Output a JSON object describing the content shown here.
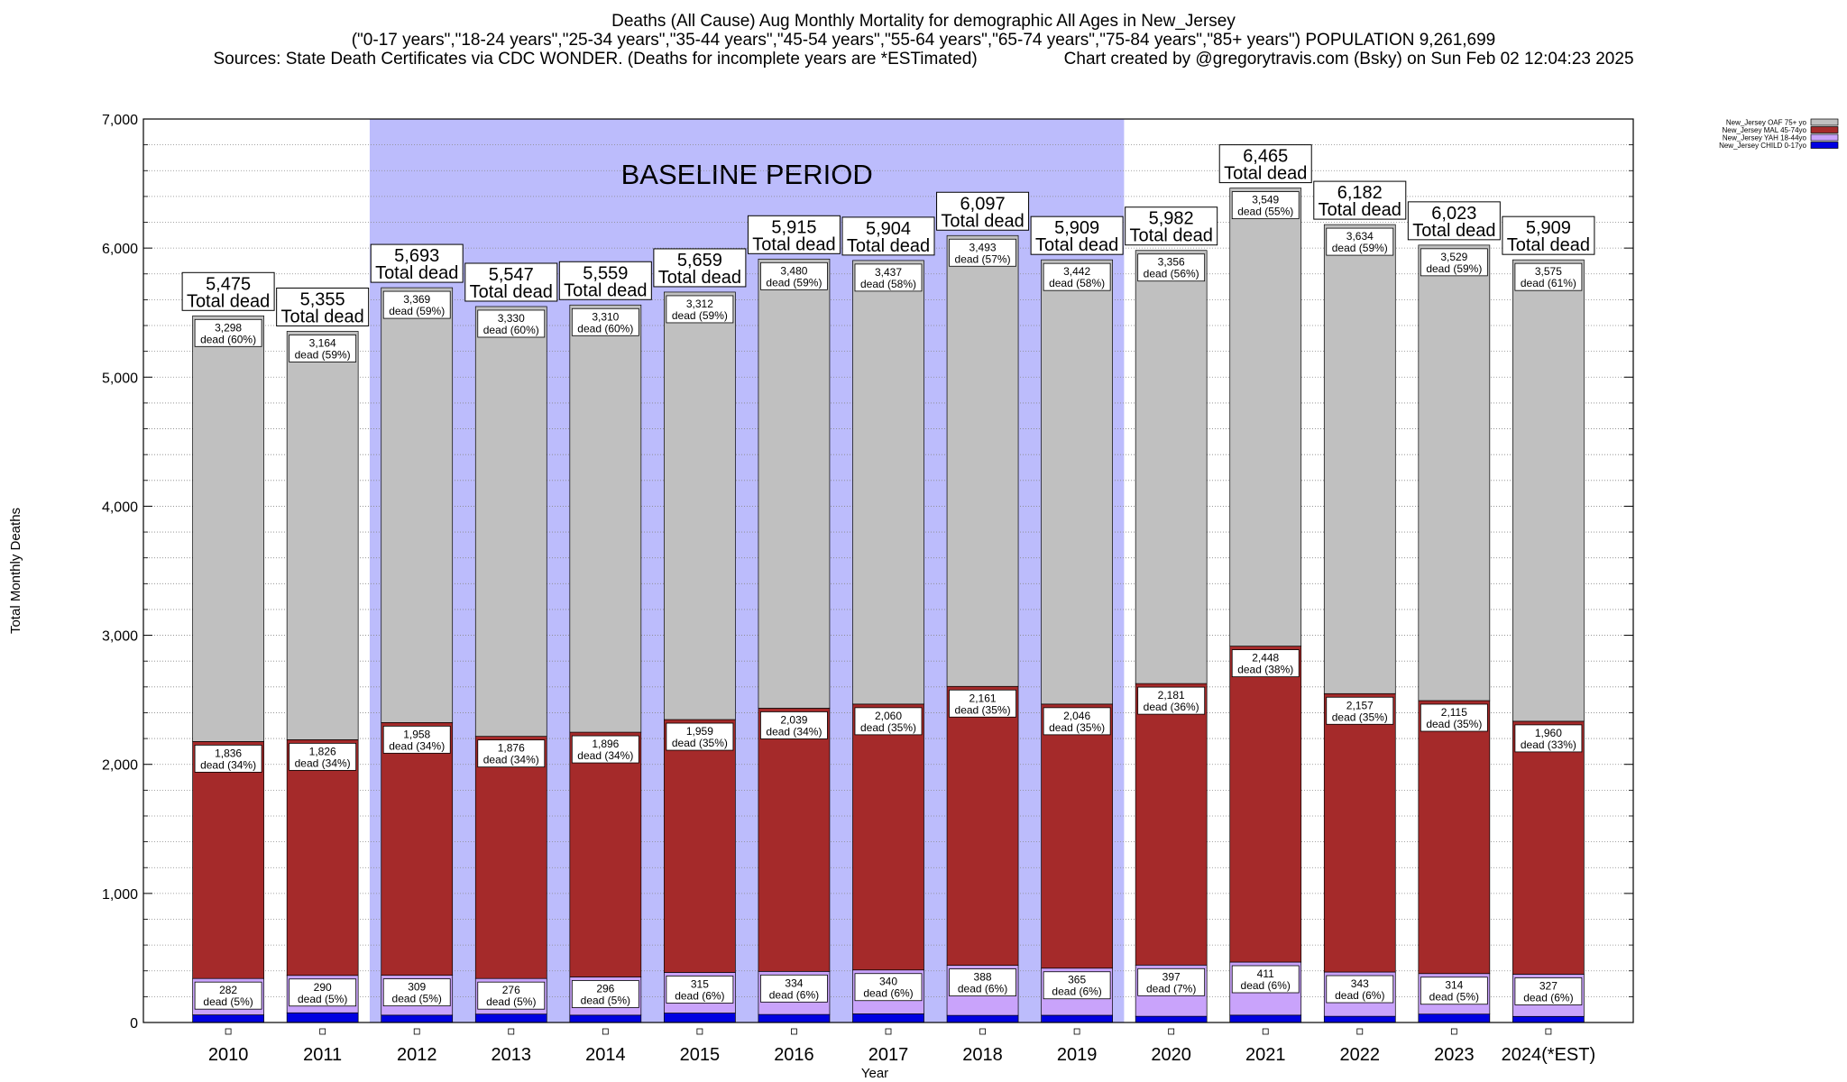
{
  "header": {
    "title": "Deaths (All Cause) Aug Monthly Mortality for demographic All Ages in New_Jersey",
    "subtitle": "(\"0-17 years\",\"18-24 years\",\"25-34 years\",\"35-44 years\",\"45-54 years\",\"55-64 years\",\"65-74 years\",\"75-84 years\",\"85+ years\") POPULATION 9,261,699",
    "sources": "Sources: State Death Certificates via CDC WONDER. (Deaths for incomplete years are *ESTimated)",
    "credit": "Chart created by @gregorytravis.com (Bsky) on Sun Feb 02 12:04:23 2025"
  },
  "chart_data": {
    "type": "bar",
    "stacked": true,
    "xlabel": "Year",
    "ylabel": "Total Monthly Deaths",
    "ylim": [
      0,
      7000
    ],
    "y_ticks": [
      0,
      1000,
      2000,
      3000,
      4000,
      5000,
      6000,
      7000
    ],
    "y_tick_labels": [
      "0",
      "1,000",
      "2,000",
      "3,000",
      "4,000",
      "5,000",
      "6,000",
      "7,000"
    ],
    "grid": "horizontal dotted lines every 200",
    "categories": [
      "2010",
      "2011",
      "2012",
      "2013",
      "2014",
      "2015",
      "2016",
      "2017",
      "2018",
      "2019",
      "2020",
      "2021",
      "2022",
      "2023",
      "2024(*EST)"
    ],
    "baseline_period": {
      "label": "BASELINE PERIOD",
      "from": "2012",
      "to": "2019",
      "color": "#bcbcfc"
    },
    "totals": [
      5475,
      5355,
      5693,
      5547,
      5559,
      5659,
      5915,
      5904,
      6097,
      5909,
      5982,
      6465,
      6182,
      6023,
      5909
    ],
    "total_labels": [
      "5,475",
      "5,355",
      "5,693",
      "5,547",
      "5,559",
      "5,659",
      "5,915",
      "5,904",
      "6,097",
      "5,909",
      "5,982",
      "6,465",
      "6,182",
      "6,023",
      "5,909"
    ],
    "total_suffix": "Total dead",
    "segment_suffix": "dead",
    "legend_position": "top-right",
    "series": [
      {
        "name": "New_Jersey CHILD 0-17yo",
        "color": "#0000e0",
        "values": [
          59,
          75,
          57,
          65,
          57,
          73,
          62,
          67,
          55,
          56,
          48,
          57,
          48,
          65,
          47
        ],
        "labels": [],
        "pct": []
      },
      {
        "name": "New_Jersey YAH 18-44yo",
        "color": "#c9a3fb",
        "values": [
          282,
          290,
          309,
          276,
          296,
          315,
          334,
          340,
          388,
          365,
          397,
          411,
          343,
          314,
          327
        ],
        "labels": [
          "282",
          "290",
          "309",
          "276",
          "296",
          "315",
          "334",
          "340",
          "388",
          "365",
          "397",
          "411",
          "343",
          "314",
          "327"
        ],
        "pct": [
          "(5%)",
          "(5%)",
          "(5%)",
          "(5%)",
          "(5%)",
          "(6%)",
          "(6%)",
          "(6%)",
          "(6%)",
          "(6%)",
          "(7%)",
          "(6%)",
          "(6%)",
          "(5%)",
          "(6%)"
        ]
      },
      {
        "name": "New_Jersey MAL 45-74yo",
        "color": "#a52a2a",
        "values": [
          1836,
          1826,
          1958,
          1876,
          1896,
          1959,
          2039,
          2060,
          2161,
          2046,
          2181,
          2448,
          2157,
          2115,
          1960
        ],
        "labels": [
          "1,836",
          "1,826",
          "1,958",
          "1,876",
          "1,896",
          "1,959",
          "2,039",
          "2,060",
          "2,161",
          "2,046",
          "2,181",
          "2,448",
          "2,157",
          "2,115",
          "1,960"
        ],
        "pct": [
          "(34%)",
          "(34%)",
          "(34%)",
          "(34%)",
          "(34%)",
          "(35%)",
          "(34%)",
          "(35%)",
          "(35%)",
          "(35%)",
          "(36%)",
          "(38%)",
          "(35%)",
          "(35%)",
          "(33%)"
        ]
      },
      {
        "name": "New_Jersey OAF 75+ yo",
        "color": "#c0c0c0",
        "values": [
          3298,
          3164,
          3369,
          3330,
          3310,
          3312,
          3480,
          3437,
          3493,
          3442,
          3356,
          3549,
          3634,
          3529,
          3575
        ],
        "labels": [
          "3,298",
          "3,164",
          "3,369",
          "3,330",
          "3,310",
          "3,312",
          "3,480",
          "3,437",
          "3,493",
          "3,442",
          "3,356",
          "3,549",
          "3,634",
          "3,529",
          "3,575"
        ],
        "pct": [
          "(60%)",
          "(59%)",
          "(59%)",
          "(60%)",
          "(60%)",
          "(59%)",
          "(59%)",
          "(58%)",
          "(57%)",
          "(58%)",
          "(56%)",
          "(55%)",
          "(59%)",
          "(59%)",
          "(61%)"
        ]
      }
    ]
  }
}
